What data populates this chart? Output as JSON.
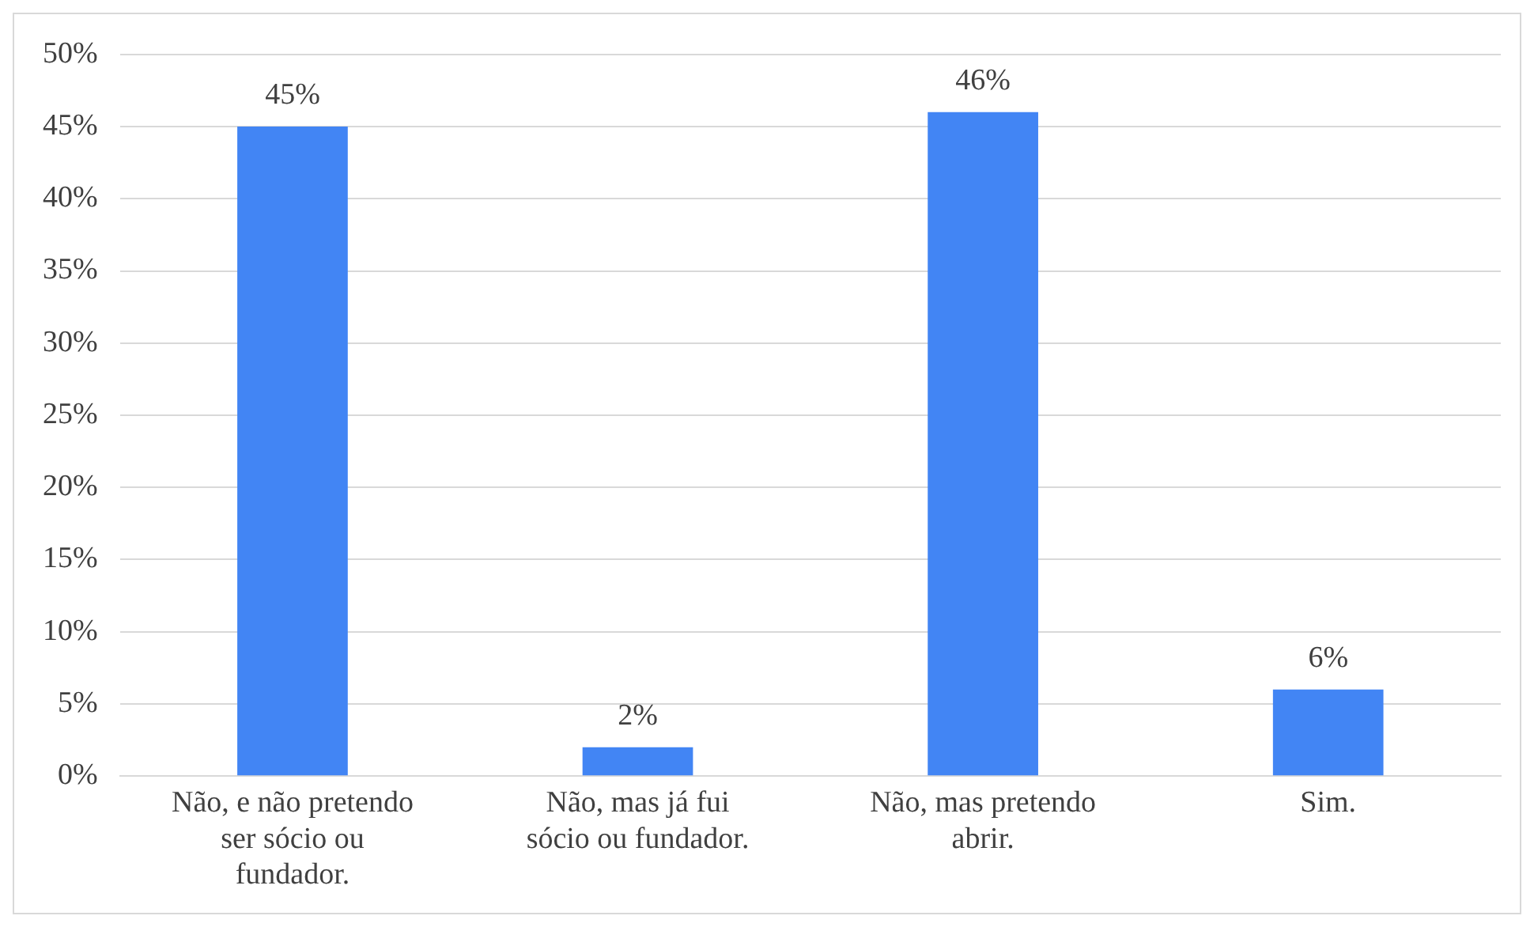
{
  "chart_data": {
    "type": "bar",
    "categories": [
      "Não, e não pretendo ser sócio ou fundador.",
      "Não, mas já fui sócio ou fundador.",
      "Não, mas pretendo abrir.",
      "Sim."
    ],
    "values": [
      45,
      2,
      46,
      6
    ],
    "color": "#4285f4",
    "value_labels": [
      "45%",
      "2%",
      "46%",
      "6%"
    ],
    "ylim": [
      0,
      50
    ],
    "yticks": [
      {
        "value": 0,
        "label": "0%"
      },
      {
        "value": 5,
        "label": "5%"
      },
      {
        "value": 10,
        "label": "10%"
      },
      {
        "value": 15,
        "label": "15%"
      },
      {
        "value": 20,
        "label": "20%"
      },
      {
        "value": 25,
        "label": "25%"
      },
      {
        "value": 30,
        "label": "30%"
      },
      {
        "value": 35,
        "label": "35%"
      },
      {
        "value": 40,
        "label": "40%"
      },
      {
        "value": 45,
        "label": "45%"
      },
      {
        "value": 50,
        "label": "50%"
      }
    ],
    "grid": "y"
  }
}
